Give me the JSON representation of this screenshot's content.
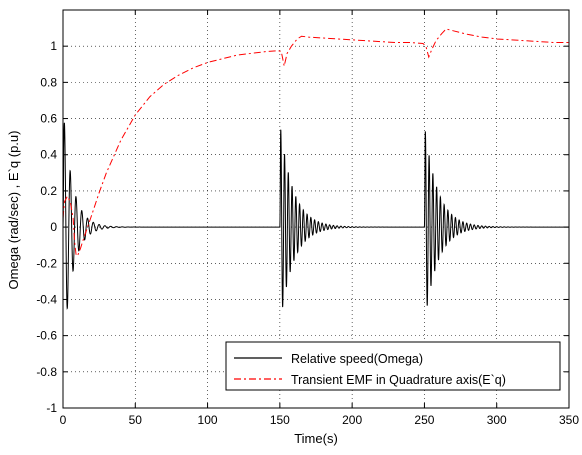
{
  "chart_data": {
    "type": "line",
    "title": "",
    "xlabel": "Time(s)",
    "ylabel": "Omega (rad/sec) , E`q (p.u)",
    "xlim": [
      0,
      350
    ],
    "ylim": [
      -1,
      1.2
    ],
    "xticks": [
      0,
      50,
      100,
      150,
      200,
      250,
      300,
      350
    ],
    "xtick_labels": [
      "0",
      "50",
      "100",
      "150",
      "200",
      "250",
      "300",
      "350"
    ],
    "yticks": [
      -1,
      -0.8,
      -0.6,
      -0.4,
      -0.2,
      0,
      0.2,
      0.4,
      0.6,
      0.8,
      1
    ],
    "ytick_labels": [
      "-1",
      "-0.8",
      "-0.6",
      "-0.4",
      "-0.2",
      "0",
      "0.2",
      "0.4",
      "0.6",
      "0.8",
      "1"
    ],
    "grid": true,
    "legend_position": "bottom-right",
    "series": [
      {
        "name": "Relative speed(Omega)",
        "color": "#000000",
        "style": "solid",
        "disturbances": [
          {
            "t0": 0,
            "peak_pos": 0.67,
            "peak_neg": -0.71,
            "period": 4.0,
            "decay": 6.5,
            "end": 80
          },
          {
            "t0": 150,
            "peak_pos": 0.58,
            "peak_neg": -0.55,
            "period": 2.6,
            "decay": 9.0,
            "end": 230
          },
          {
            "t0": 250,
            "peak_pos": 0.57,
            "peak_neg": -0.54,
            "period": 2.6,
            "decay": 9.0,
            "end": 330
          }
        ]
      },
      {
        "name": "Transient EMF in Quadrature axis(E`q)",
        "color": "#ff0000",
        "style": "dash-dot",
        "points": [
          [
            0,
            0.05
          ],
          [
            1,
            0.14
          ],
          [
            3,
            0.17
          ],
          [
            5,
            0.14
          ],
          [
            7,
            0.05
          ],
          [
            8,
            -0.08
          ],
          [
            9,
            -0.15
          ],
          [
            10,
            -0.16
          ],
          [
            12,
            -0.12
          ],
          [
            14,
            -0.07
          ],
          [
            17,
            0.0
          ],
          [
            20,
            0.07
          ],
          [
            25,
            0.19
          ],
          [
            30,
            0.3
          ],
          [
            40,
            0.48
          ],
          [
            50,
            0.62
          ],
          [
            60,
            0.72
          ],
          [
            70,
            0.79
          ],
          [
            80,
            0.84
          ],
          [
            90,
            0.88
          ],
          [
            100,
            0.91
          ],
          [
            110,
            0.93
          ],
          [
            120,
            0.95
          ],
          [
            130,
            0.96
          ],
          [
            140,
            0.97
          ],
          [
            149,
            0.975
          ],
          [
            151,
            0.97
          ],
          [
            153,
            0.89
          ],
          [
            155,
            0.96
          ],
          [
            158,
            1.0
          ],
          [
            162,
            1.04
          ],
          [
            165,
            1.055
          ],
          [
            170,
            1.05
          ],
          [
            180,
            1.045
          ],
          [
            190,
            1.04
          ],
          [
            200,
            1.035
          ],
          [
            210,
            1.03
          ],
          [
            220,
            1.025
          ],
          [
            230,
            1.02
          ],
          [
            240,
            1.02
          ],
          [
            249,
            1.015
          ],
          [
            251,
            1.0
          ],
          [
            253,
            0.94
          ],
          [
            255,
            0.98
          ],
          [
            258,
            1.03
          ],
          [
            262,
            1.07
          ],
          [
            265,
            1.095
          ],
          [
            270,
            1.085
          ],
          [
            280,
            1.065
          ],
          [
            290,
            1.05
          ],
          [
            300,
            1.04
          ],
          [
            310,
            1.035
          ],
          [
            320,
            1.03
          ],
          [
            330,
            1.025
          ],
          [
            340,
            1.02
          ],
          [
            350,
            1.02
          ]
        ]
      }
    ]
  }
}
